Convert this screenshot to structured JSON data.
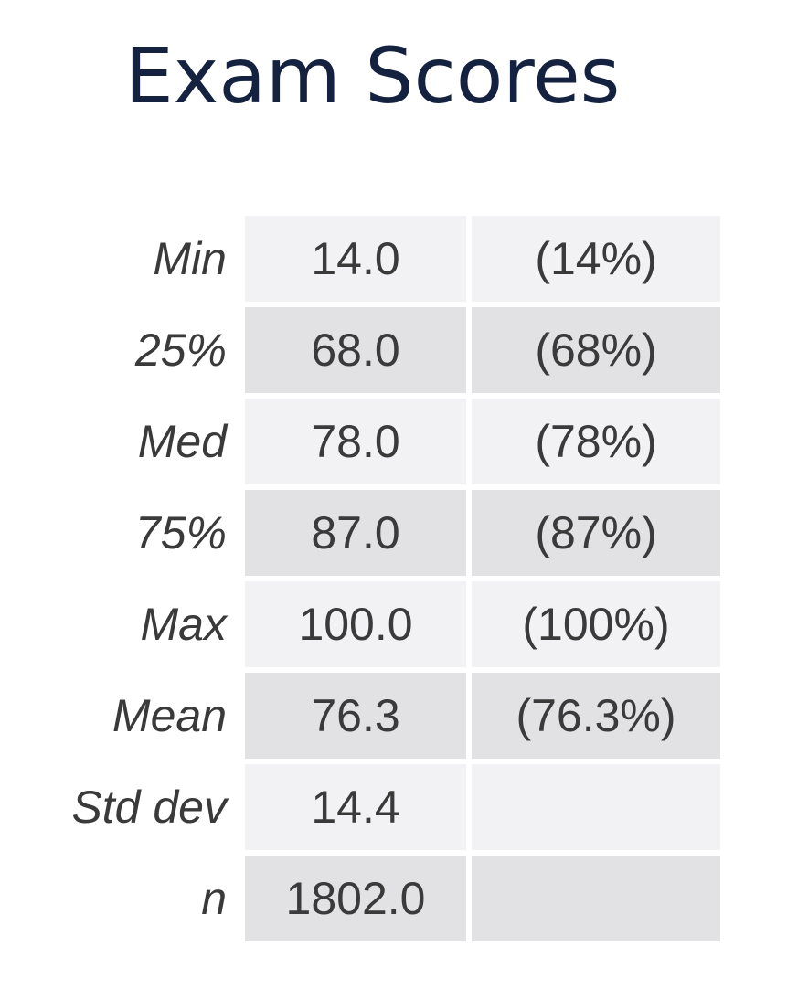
{
  "title": "Exam Scores",
  "rows": [
    {
      "label": "Min",
      "value": "14.0",
      "percent": "(14%)"
    },
    {
      "label": "25%",
      "value": "68.0",
      "percent": "(68%)"
    },
    {
      "label": "Med",
      "value": "78.0",
      "percent": "(78%)"
    },
    {
      "label": "75%",
      "value": "87.0",
      "percent": "(87%)"
    },
    {
      "label": "Max",
      "value": "100.0",
      "percent": "(100%)"
    },
    {
      "label": "Mean",
      "value": "76.3",
      "percent": "(76.3%)"
    },
    {
      "label": "Std dev",
      "value": "14.4",
      "percent": ""
    },
    {
      "label": "n",
      "value": "1802.0",
      "percent": ""
    }
  ],
  "colors": {
    "title": "#14223f",
    "text": "#3a3a3a",
    "row_light": "#f2f2f4",
    "row_dark": "#e2e2e4"
  }
}
